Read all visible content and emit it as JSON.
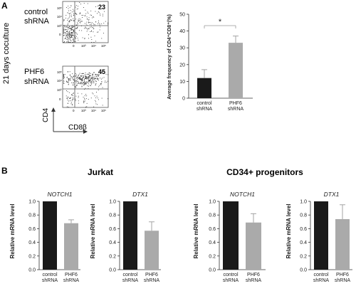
{
  "panel_a": {
    "label": "A",
    "coculture_label": "21 days coculture",
    "facs": [
      {
        "line1": "control",
        "line2": "shRNA",
        "percent": "23"
      },
      {
        "line1": "PHF6",
        "line2": "shRNA",
        "percent": "45"
      }
    ],
    "facs_ticks": [
      "0",
      "10²",
      "10³",
      "10⁴",
      "10⁵"
    ],
    "y_axis_label": "CD4",
    "x_axis_label": "CD8β"
  },
  "panel_b": {
    "label": "B",
    "group1_title": "Jurkat",
    "group2_title": "CD34+ progenitors"
  },
  "colors": {
    "black_bar": "#1a1a1a",
    "gray_bar": "#aaaaaa",
    "axis": "#333333"
  },
  "chart_data": [
    {
      "type": "bar",
      "panel": "A",
      "categories": [
        "control\nshRNA",
        "PHF6\nshRNA"
      ],
      "values": [
        12,
        33
      ],
      "errors": [
        5,
        4
      ],
      "ylabel": "Average frequency of CD4⁺CD8⁺(%)",
      "ylim": [
        0,
        50
      ],
      "yticks": [
        0,
        10,
        20,
        30,
        40,
        50
      ],
      "significance": "*",
      "bar_colors": [
        "#1a1a1a",
        "#aaaaaa"
      ]
    },
    {
      "type": "bar",
      "panel": "B",
      "group": "Jurkat",
      "title": "NOTCH1",
      "categories": [
        "control\nshRNA",
        "PHF6\nshRNA"
      ],
      "values": [
        1.0,
        0.68
      ],
      "errors": [
        0,
        0.05
      ],
      "ylabel": "Relative mRNA level",
      "ylim": [
        0,
        1.0
      ],
      "yticks": [
        0,
        0.2,
        0.4,
        0.6,
        0.8,
        1.0
      ],
      "bar_colors": [
        "#1a1a1a",
        "#aaaaaa"
      ]
    },
    {
      "type": "bar",
      "panel": "B",
      "group": "Jurkat",
      "title": "DTX1",
      "categories": [
        "control\nshRNA",
        "PHF6\nshRNA"
      ],
      "values": [
        1.0,
        0.57
      ],
      "errors": [
        0,
        0.13
      ],
      "ylabel": "Relative mRNA level",
      "ylim": [
        0,
        1.0
      ],
      "yticks": [
        0,
        0.2,
        0.4,
        0.6,
        0.8,
        1.0
      ],
      "bar_colors": [
        "#1a1a1a",
        "#aaaaaa"
      ]
    },
    {
      "type": "bar",
      "panel": "B",
      "group": "CD34+ progenitors",
      "title": "NOTCH1",
      "categories": [
        "control\nshRNA",
        "PHF6\nshRNA"
      ],
      "values": [
        1.0,
        0.69
      ],
      "errors": [
        0,
        0.13
      ],
      "ylabel": "Relative mRNA level",
      "ylim": [
        0,
        1.0
      ],
      "yticks": [
        0,
        0.2,
        0.4,
        0.6,
        0.8,
        1.0
      ],
      "bar_colors": [
        "#1a1a1a",
        "#aaaaaa"
      ]
    },
    {
      "type": "bar",
      "panel": "B",
      "group": "CD34+ progenitors",
      "title": "DTX1",
      "categories": [
        "control\nshRNA",
        "PHF6\nshRNA"
      ],
      "values": [
        1.0,
        0.74
      ],
      "errors": [
        0,
        0.21
      ],
      "ylabel": "Relative mRNA level",
      "ylim": [
        0,
        1.0
      ],
      "yticks": [
        0,
        0.2,
        0.4,
        0.6,
        0.8,
        1.0
      ],
      "bar_colors": [
        "#1a1a1a",
        "#aaaaaa"
      ]
    }
  ]
}
